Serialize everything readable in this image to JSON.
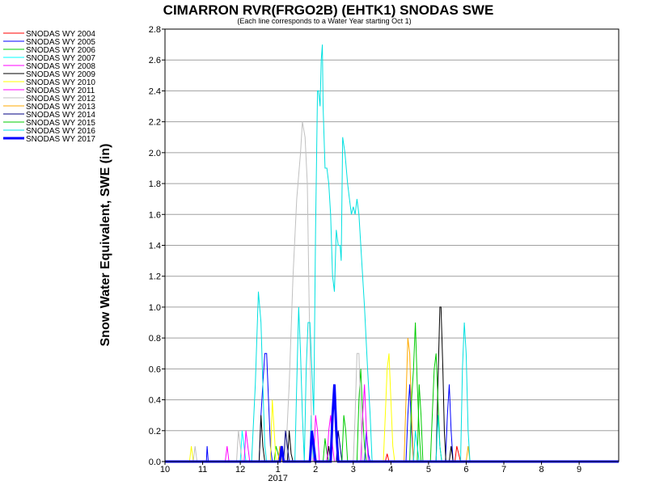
{
  "chart_data": {
    "type": "line",
    "title": "CIMARRON RVR(FRGO2B) (EHTK1) SNODAS SWE",
    "subtitle": "(Each line corresponds to a Water Year starting Oct 1)",
    "ylabel": "Snow Water Equivalent, SWE (in)",
    "xlabel": "",
    "ylim": [
      0,
      2.8
    ],
    "yticks": [
      "0.0",
      "0.2",
      "0.4",
      "0.6",
      "0.8",
      "1.0",
      "1.2",
      "1.4",
      "1.6",
      "1.8",
      "2.0",
      "2.2",
      "2.4",
      "2.6",
      "2.8"
    ],
    "xlim": [
      1,
      13.05
    ],
    "x_units": "month index (1 = Oct 1, 2 = Nov 1, ... 12 = Sep 1)",
    "xticks": [
      {
        "x": 1,
        "label": "10"
      },
      {
        "x": 2,
        "label": "11"
      },
      {
        "x": 3,
        "label": "12"
      },
      {
        "x": 4,
        "label": "1"
      },
      {
        "x": 5,
        "label": "2"
      },
      {
        "x": 6,
        "label": "3"
      },
      {
        "x": 7,
        "label": "4"
      },
      {
        "x": 8,
        "label": "5"
      },
      {
        "x": 9,
        "label": "6"
      },
      {
        "x": 10,
        "label": "7"
      },
      {
        "x": 11,
        "label": "8"
      },
      {
        "x": 12,
        "label": "9"
      }
    ],
    "year_label": "2017",
    "grid": "horizontal",
    "legend_position": "left",
    "series": [
      {
        "name": "SNODAS WY 2004",
        "color": "#ff0000",
        "width": 1,
        "points": [
          [
            1,
            0
          ],
          [
            6.85,
            0
          ],
          [
            6.9,
            0.05
          ],
          [
            6.95,
            0
          ],
          [
            8.7,
            0
          ],
          [
            8.75,
            0.1
          ],
          [
            8.8,
            0.05
          ],
          [
            8.85,
            0
          ],
          [
            13.05,
            0
          ]
        ]
      },
      {
        "name": "SNODAS WY 2005",
        "color": "#0000ff",
        "width": 1,
        "points": [
          [
            1,
            0
          ],
          [
            2.1,
            0
          ],
          [
            2.12,
            0.1
          ],
          [
            2.15,
            0
          ],
          [
            3.5,
            0
          ],
          [
            3.55,
            0.3
          ],
          [
            3.6,
            0.5
          ],
          [
            3.65,
            0.7
          ],
          [
            3.7,
            0.7
          ],
          [
            3.75,
            0.4
          ],
          [
            3.8,
            0.1
          ],
          [
            3.85,
            0
          ],
          [
            6.3,
            0
          ],
          [
            6.35,
            0.2
          ],
          [
            6.4,
            0.05
          ],
          [
            6.45,
            0
          ],
          [
            7.4,
            0
          ],
          [
            7.45,
            0.3
          ],
          [
            7.5,
            0.5
          ],
          [
            7.55,
            0.2
          ],
          [
            7.6,
            0
          ],
          [
            8.45,
            0
          ],
          [
            8.5,
            0.3
          ],
          [
            8.55,
            0.5
          ],
          [
            8.6,
            0.2
          ],
          [
            8.65,
            0
          ],
          [
            13.05,
            0
          ]
        ]
      },
      {
        "name": "SNODAS WY 2006",
        "color": "#00cc00",
        "width": 1,
        "points": [
          [
            1,
            0
          ],
          [
            3.9,
            0
          ],
          [
            3.95,
            0.1
          ],
          [
            4,
            0.05
          ],
          [
            4.05,
            0
          ],
          [
            5.2,
            0
          ],
          [
            5.25,
            0.15
          ],
          [
            5.3,
            0.05
          ],
          [
            5.35,
            0
          ],
          [
            6.1,
            0
          ],
          [
            6.15,
            0.4
          ],
          [
            6.2,
            0.6
          ],
          [
            6.25,
            0.3
          ],
          [
            6.3,
            0.1
          ],
          [
            6.35,
            0
          ],
          [
            7.7,
            0
          ],
          [
            7.75,
            0.5
          ],
          [
            7.8,
            0.3
          ],
          [
            7.85,
            0
          ],
          [
            13.05,
            0
          ]
        ]
      },
      {
        "name": "SNODAS WY 2007",
        "color": "#00ffff",
        "width": 1,
        "points": [
          [
            1,
            0
          ],
          [
            3.0,
            0
          ],
          [
            3.05,
            0.2
          ],
          [
            3.1,
            0.1
          ],
          [
            3.15,
            0
          ],
          [
            4.85,
            0
          ],
          [
            4.88,
            0.3
          ],
          [
            4.92,
            0.1
          ],
          [
            4.95,
            0
          ],
          [
            13.05,
            0
          ]
        ]
      },
      {
        "name": "SNODAS WY 2008",
        "color": "#ff00ff",
        "width": 1,
        "points": [
          [
            1,
            0
          ],
          [
            3.1,
            0
          ],
          [
            3.15,
            0.2
          ],
          [
            3.2,
            0.1
          ],
          [
            3.25,
            0
          ],
          [
            4.95,
            0
          ],
          [
            5.0,
            0.3
          ],
          [
            5.05,
            0.2
          ],
          [
            5.1,
            0
          ],
          [
            6.2,
            0
          ],
          [
            6.25,
            0.3
          ],
          [
            6.3,
            0.5
          ],
          [
            6.35,
            0.2
          ],
          [
            6.4,
            0
          ],
          [
            13.05,
            0
          ]
        ]
      },
      {
        "name": "SNODAS WY 2009",
        "color": "#000000",
        "width": 1,
        "points": [
          [
            1,
            0
          ],
          [
            3.5,
            0
          ],
          [
            3.55,
            0.3
          ],
          [
            3.6,
            0.1
          ],
          [
            3.65,
            0
          ],
          [
            4.25,
            0
          ],
          [
            4.3,
            0.2
          ],
          [
            4.35,
            0.05
          ],
          [
            4.4,
            0
          ],
          [
            5.3,
            0
          ],
          [
            5.35,
            0.1
          ],
          [
            5.4,
            0
          ],
          [
            8.2,
            0
          ],
          [
            8.25,
            0.5
          ],
          [
            8.3,
            1.0
          ],
          [
            8.33,
            1.0
          ],
          [
            8.38,
            0.6
          ],
          [
            8.42,
            0.2
          ],
          [
            8.46,
            0
          ],
          [
            8.55,
            0
          ],
          [
            8.6,
            0.1
          ],
          [
            8.65,
            0
          ],
          [
            13.05,
            0
          ]
        ]
      },
      {
        "name": "SNODAS WY 2010",
        "color": "#ffff00",
        "width": 1,
        "points": [
          [
            1,
            0
          ],
          [
            1.65,
            0
          ],
          [
            1.7,
            0.1
          ],
          [
            1.75,
            0
          ],
          [
            3.8,
            0
          ],
          [
            3.85,
            0.4
          ],
          [
            3.9,
            0.2
          ],
          [
            3.95,
            0
          ],
          [
            6.8,
            0
          ],
          [
            6.85,
            0.3
          ],
          [
            6.9,
            0.6
          ],
          [
            6.95,
            0.7
          ],
          [
            7.0,
            0.4
          ],
          [
            7.05,
            0.1
          ],
          [
            7.1,
            0
          ],
          [
            13.05,
            0
          ]
        ]
      },
      {
        "name": "SNODAS WY 2011",
        "color": "#ff00ff",
        "width": 1,
        "points": [
          [
            1,
            0
          ],
          [
            2.6,
            0
          ],
          [
            2.65,
            0.1
          ],
          [
            2.7,
            0
          ],
          [
            5.3,
            0
          ],
          [
            5.35,
            0.2
          ],
          [
            5.4,
            0.3
          ],
          [
            5.45,
            0.1
          ],
          [
            5.5,
            0
          ],
          [
            13.05,
            0
          ]
        ]
      },
      {
        "name": "SNODAS WY 2012",
        "color": "#c0c0c0",
        "width": 1,
        "points": [
          [
            1,
            0
          ],
          [
            1.75,
            0
          ],
          [
            1.8,
            0.1
          ],
          [
            1.85,
            0
          ],
          [
            2.9,
            0
          ],
          [
            2.95,
            0.2
          ],
          [
            3.0,
            0.1
          ],
          [
            3.05,
            0
          ],
          [
            4.2,
            0
          ],
          [
            4.3,
            0.5
          ],
          [
            4.4,
            1.2
          ],
          [
            4.5,
            1.7
          ],
          [
            4.6,
            2.0
          ],
          [
            4.65,
            2.2
          ],
          [
            4.72,
            2.1
          ],
          [
            4.78,
            1.8
          ],
          [
            4.83,
            1.0
          ],
          [
            4.88,
            0.4
          ],
          [
            4.92,
            0
          ],
          [
            6.0,
            0
          ],
          [
            6.05,
            0.3
          ],
          [
            6.1,
            0.7
          ],
          [
            6.15,
            0.7
          ],
          [
            6.2,
            0.3
          ],
          [
            6.25,
            0
          ],
          [
            13.05,
            0
          ]
        ]
      },
      {
        "name": "SNODAS WY 2013",
        "color": "#ffaa00",
        "width": 1,
        "points": [
          [
            1,
            0
          ],
          [
            4.0,
            0
          ],
          [
            4.05,
            0.1
          ],
          [
            4.1,
            0
          ],
          [
            7.35,
            0
          ],
          [
            7.4,
            0.4
          ],
          [
            7.45,
            0.8
          ],
          [
            7.5,
            0.7
          ],
          [
            7.55,
            0.3
          ],
          [
            7.6,
            0
          ],
          [
            9.0,
            0
          ],
          [
            9.05,
            0.1
          ],
          [
            9.1,
            0
          ],
          [
            13.05,
            0
          ]
        ]
      },
      {
        "name": "SNODAS WY 2014",
        "color": "#000080",
        "width": 1,
        "points": [
          [
            1,
            0
          ],
          [
            4.15,
            0
          ],
          [
            4.2,
            0.2
          ],
          [
            4.25,
            0.1
          ],
          [
            4.3,
            0
          ],
          [
            5.55,
            0
          ],
          [
            5.6,
            0.2
          ],
          [
            5.65,
            0.1
          ],
          [
            5.7,
            0
          ],
          [
            13.05,
            0
          ]
        ]
      },
      {
        "name": "SNODAS WY 2015",
        "color": "#00cc00",
        "width": 1,
        "points": [
          [
            1,
            0
          ],
          [
            5.7,
            0
          ],
          [
            5.75,
            0.3
          ],
          [
            5.8,
            0.2
          ],
          [
            5.85,
            0
          ],
          [
            7.5,
            0
          ],
          [
            7.55,
            0.4
          ],
          [
            7.6,
            0.6
          ],
          [
            7.65,
            0.9
          ],
          [
            7.7,
            0.5
          ],
          [
            7.75,
            0.2
          ],
          [
            7.8,
            0
          ],
          [
            8.05,
            0
          ],
          [
            8.1,
            0.3
          ],
          [
            8.15,
            0.6
          ],
          [
            8.2,
            0.7
          ],
          [
            8.25,
            0.4
          ],
          [
            8.3,
            0.1
          ],
          [
            8.35,
            0
          ],
          [
            13.05,
            0
          ]
        ]
      },
      {
        "name": "SNODAS WY 2016",
        "color": "#00e0e0",
        "width": 1,
        "points": [
          [
            1,
            0
          ],
          [
            3.3,
            0
          ],
          [
            3.4,
            0.5
          ],
          [
            3.48,
            1.1
          ],
          [
            3.55,
            0.9
          ],
          [
            3.6,
            0.5
          ],
          [
            3.65,
            0.1
          ],
          [
            3.7,
            0
          ],
          [
            4.45,
            0
          ],
          [
            4.5,
            0.5
          ],
          [
            4.55,
            1.0
          ],
          [
            4.6,
            0.7
          ],
          [
            4.65,
            0.3
          ],
          [
            4.7,
            0
          ],
          [
            4.75,
            0.6
          ],
          [
            4.8,
            0.9
          ],
          [
            4.85,
            0.9
          ],
          [
            4.9,
            0.6
          ],
          [
            4.95,
            0.3
          ],
          [
            5.0,
            1.5
          ],
          [
            5.05,
            2.4
          ],
          [
            5.08,
            2.4
          ],
          [
            5.12,
            2.3
          ],
          [
            5.15,
            2.6
          ],
          [
            5.18,
            2.7
          ],
          [
            5.2,
            2.3
          ],
          [
            5.25,
            1.9
          ],
          [
            5.3,
            1.9
          ],
          [
            5.35,
            1.8
          ],
          [
            5.4,
            1.6
          ],
          [
            5.45,
            1.2
          ],
          [
            5.5,
            1.1
          ],
          [
            5.55,
            1.5
          ],
          [
            5.6,
            1.4
          ],
          [
            5.65,
            1.4
          ],
          [
            5.68,
            1.3
          ],
          [
            5.72,
            2.1
          ],
          [
            5.78,
            2.0
          ],
          [
            5.85,
            1.8
          ],
          [
            5.9,
            1.7
          ],
          [
            5.95,
            1.6
          ],
          [
            6.0,
            1.65
          ],
          [
            6.05,
            1.6
          ],
          [
            6.1,
            1.7
          ],
          [
            6.15,
            1.6
          ],
          [
            6.2,
            1.4
          ],
          [
            6.3,
            1.0
          ],
          [
            6.38,
            0.6
          ],
          [
            6.45,
            0.3
          ],
          [
            6.5,
            0
          ],
          [
            7.6,
            0
          ],
          [
            7.65,
            0.2
          ],
          [
            7.7,
            0.1
          ],
          [
            7.75,
            0
          ],
          [
            8.2,
            0
          ],
          [
            8.25,
            0.3
          ],
          [
            8.3,
            0.1
          ],
          [
            8.35,
            0
          ],
          [
            8.85,
            0
          ],
          [
            8.9,
            0.6
          ],
          [
            8.95,
            0.9
          ],
          [
            9.0,
            0.7
          ],
          [
            9.05,
            0.2
          ],
          [
            9.1,
            0
          ],
          [
            13.05,
            0
          ]
        ]
      },
      {
        "name": "SNODAS WY 2017",
        "color": "#0000ff",
        "width": 3,
        "points": [
          [
            1,
            0
          ],
          [
            4.05,
            0
          ],
          [
            4.1,
            0.1
          ],
          [
            4.15,
            0
          ],
          [
            4.85,
            0
          ],
          [
            4.9,
            0.2
          ],
          [
            4.95,
            0.1
          ],
          [
            5.0,
            0
          ],
          [
            5.4,
            0
          ],
          [
            5.45,
            0.3
          ],
          [
            5.5,
            0.5
          ],
          [
            5.55,
            0.2
          ],
          [
            5.6,
            0
          ],
          [
            13.05,
            0
          ]
        ]
      }
    ]
  }
}
